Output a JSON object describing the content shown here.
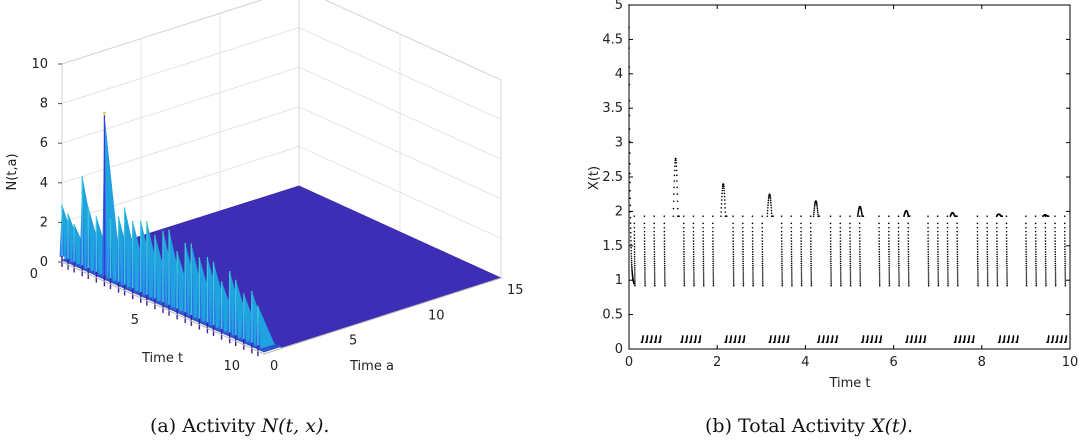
{
  "captions": {
    "a_prefix": "(a) Activity ",
    "a_math": "N(t, x)",
    "a_suffix": ".",
    "b_prefix": "(b) Total Activity ",
    "b_math": "X(t)",
    "b_suffix": "."
  },
  "chart_data": [
    {
      "type": "surface",
      "zlabel": "N(t,a)",
      "tlabel": "Time t",
      "alabel": "Time a",
      "z_ticks": [
        "0",
        "2",
        "4",
        "6",
        "8",
        "10"
      ],
      "t_ticks": [
        "0",
        "5",
        "10"
      ],
      "a_ticks": [
        "0",
        "5",
        "10",
        "15"
      ],
      "zlim": [
        0,
        10
      ],
      "tlim": [
        0,
        10
      ],
      "alim": [
        0,
        15
      ],
      "grid": true,
      "colormap": [
        "#3b1fa0",
        "#3f3ad6",
        "#2f6fe8",
        "#1fa3e0",
        "#39c8d8",
        "#e8c23a"
      ],
      "peaks": [
        {
          "t": 0.0,
          "z": 2.9
        },
        {
          "t": 0.3,
          "z": 2.6
        },
        {
          "t": 0.6,
          "z": 2.2
        },
        {
          "t": 1.0,
          "z": 4.8
        },
        {
          "t": 1.3,
          "z": 3.4
        },
        {
          "t": 1.7,
          "z": 3.1
        },
        {
          "t": 2.1,
          "z": 8.4
        },
        {
          "t": 2.4,
          "z": 3.3
        },
        {
          "t": 2.8,
          "z": 3.6
        },
        {
          "t": 3.1,
          "z": 4.2
        },
        {
          "t": 3.5,
          "z": 3.7
        },
        {
          "t": 3.9,
          "z": 3.9
        },
        {
          "t": 4.2,
          "z": 4.0
        },
        {
          "t": 4.6,
          "z": 3.5
        },
        {
          "t": 5.0,
          "z": 3.9
        },
        {
          "t": 5.3,
          "z": 4.1
        },
        {
          "t": 5.7,
          "z": 3.2
        },
        {
          "t": 6.1,
          "z": 3.8
        },
        {
          "t": 6.4,
          "z": 3.9
        },
        {
          "t": 6.8,
          "z": 3.4
        },
        {
          "t": 7.2,
          "z": 3.6
        },
        {
          "t": 7.5,
          "z": 3.5
        },
        {
          "t": 7.9,
          "z": 2.7
        },
        {
          "t": 8.3,
          "z": 3.4
        },
        {
          "t": 8.6,
          "z": 3.1
        },
        {
          "t": 9.0,
          "z": 2.6
        },
        {
          "t": 9.4,
          "z": 2.9
        },
        {
          "t": 9.7,
          "z": 2.3
        }
      ]
    },
    {
      "type": "scatter",
      "xlabel": "Time t",
      "ylabel": "X(t)",
      "xlim": [
        0,
        10
      ],
      "ylim": [
        0,
        5
      ],
      "x_ticks": [
        "0",
        "2",
        "4",
        "6",
        "8",
        "10"
      ],
      "y_ticks": [
        "0",
        "0.5",
        "1",
        "1.5",
        "2",
        "2.5",
        "3",
        "3.5",
        "4",
        "4.5",
        "5"
      ],
      "grid": false,
      "color": "#000000",
      "upper_branch": {
        "y_high": 1.93,
        "y_low": 0.92,
        "spikes": [
          0.12,
          0.35,
          0.57,
          0.8,
          1.24,
          1.46,
          1.68,
          1.9,
          2.36,
          2.58,
          2.8,
          3.02,
          3.46,
          3.68,
          3.9,
          4.12,
          4.57,
          4.79,
          5.01,
          5.23,
          5.67,
          5.89,
          6.11,
          6.33,
          6.78,
          7.0,
          7.22,
          7.44,
          7.9,
          8.12,
          8.34,
          8.56,
          9.0,
          9.22,
          9.44,
          9.66,
          9.88
        ]
      },
      "humps": [
        {
          "t": 1.07,
          "peak": 2.77
        },
        {
          "t": 2.15,
          "peak": 2.4
        },
        {
          "t": 3.2,
          "peak": 2.25
        },
        {
          "t": 4.25,
          "peak": 2.15
        },
        {
          "t": 5.25,
          "peak": 2.07
        },
        {
          "t": 6.3,
          "peak": 2.01
        },
        {
          "t": 7.35,
          "peak": 1.98
        },
        {
          "t": 8.4,
          "peak": 1.96
        },
        {
          "t": 9.45,
          "peak": 1.95
        }
      ],
      "lower_branch": {
        "y_low": 0.1,
        "y_high": 0.19,
        "ticks": [
          0.3,
          0.4,
          0.5,
          0.6,
          0.7,
          1.2,
          1.3,
          1.4,
          1.5,
          1.6,
          2.2,
          2.3,
          2.4,
          2.5,
          2.6,
          3.2,
          3.3,
          3.4,
          3.5,
          3.6,
          4.3,
          4.4,
          4.5,
          4.6,
          4.7,
          5.3,
          5.4,
          5.5,
          5.6,
          5.7,
          6.3,
          6.4,
          6.5,
          6.6,
          6.7,
          7.4,
          7.5,
          7.6,
          7.7,
          7.8,
          8.4,
          8.5,
          8.6,
          8.7,
          8.8,
          9.5,
          9.6,
          9.7,
          9.8,
          9.9
        ]
      },
      "initial_decay": {
        "t0": 0.0,
        "y0": 5.0,
        "t1": 0.12,
        "y1": 0.92
      }
    }
  ]
}
